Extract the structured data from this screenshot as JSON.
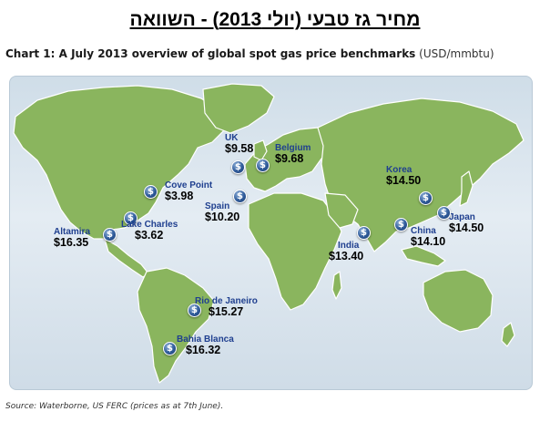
{
  "page": {
    "heading": "מחיר גז טבעי (יולי 2013)  - השוואה",
    "chart_title": "Chart 1: A July 2013 overview of global spot gas price benchmarks",
    "units": "(USD/mmbtu)",
    "source": "Source: Waterborne, US FERC (prices as at 7th June)."
  },
  "map": {
    "marker_symbol": "$",
    "colors": {
      "ocean": "#d7e3ed",
      "land": "#8ab55e",
      "land_border": "#ffffff",
      "marker": "#2f5b9a",
      "location_label": "#1f3f8f",
      "price_label": "#000000"
    },
    "locations": [
      {
        "id": "uk",
        "name": "UK",
        "price": "$9.58"
      },
      {
        "id": "belgium",
        "name": "Belgium",
        "price": "$9.68"
      },
      {
        "id": "spain",
        "name": "Spain",
        "price": "$10.20"
      },
      {
        "id": "cove-point",
        "name": "Cove Point",
        "price": "$3.98"
      },
      {
        "id": "lake-charles",
        "name": "Lake Charles",
        "price": "$3.62"
      },
      {
        "id": "altamira",
        "name": "Altamira",
        "price": "$16.35"
      },
      {
        "id": "rio-de-janeiro",
        "name": "Rio de Janeiro",
        "price": "$15.27"
      },
      {
        "id": "bahia-blanca",
        "name": "Bahia Blanca",
        "price": "$16.32"
      },
      {
        "id": "korea",
        "name": "Korea",
        "price": "$14.50"
      },
      {
        "id": "japan",
        "name": "Japan",
        "price": "$14.50"
      },
      {
        "id": "china",
        "name": "China",
        "price": "$14.10"
      },
      {
        "id": "india",
        "name": "India",
        "price": "$13.40"
      }
    ]
  }
}
